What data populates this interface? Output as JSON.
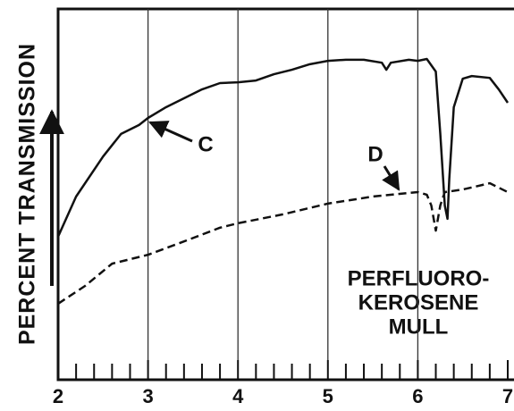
{
  "chart_data": {
    "type": "line",
    "ylabel": "PERCENT TRANSMISSION",
    "xlim": [
      2,
      7
    ],
    "ylim": [
      0,
      100
    ],
    "xticks": [
      2,
      3,
      4,
      5,
      6,
      7
    ],
    "minor_xticks": [
      2.2,
      2.4,
      2.6,
      2.8,
      3.2,
      3.4,
      3.6,
      3.8,
      4.2,
      4.4,
      4.6,
      4.8,
      5.2,
      5.4,
      5.6,
      5.8,
      6.2,
      6.4,
      6.6,
      6.8
    ],
    "grid": true,
    "series": [
      {
        "name": "C",
        "color": "#111111",
        "dash": false,
        "x": [
          2,
          2.2,
          2.5,
          2.7,
          2.9,
          3.0,
          3.2,
          3.4,
          3.6,
          3.8,
          4.0,
          4.2,
          4.4,
          4.6,
          4.8,
          5.0,
          5.2,
          5.4,
          5.6,
          5.65,
          5.7,
          5.9,
          6.0,
          6.1,
          6.2,
          6.25,
          6.3,
          6.33,
          6.35,
          6.4,
          6.5,
          6.6,
          6.8,
          6.9,
          7.0
        ],
        "values": [
          38.6,
          49.4,
          60.2,
          66.3,
          68.7,
          70.6,
          73.5,
          75.9,
          78.3,
          80.0,
          80.2,
          80.7,
          82.4,
          83.6,
          85.1,
          86.0,
          86.3,
          86.3,
          85.5,
          83.6,
          85.5,
          86.3,
          86.0,
          86.5,
          83.1,
          66.3,
          47.0,
          43.4,
          54.2,
          73.5,
          81.2,
          81.9,
          81.4,
          78.3,
          74.7
        ]
      },
      {
        "name": "D",
        "color": "#111111",
        "dash": true,
        "x": [
          2,
          2.3,
          2.6,
          3.0,
          3.4,
          3.8,
          4.0,
          4.5,
          5.0,
          5.5,
          6.0,
          6.1,
          6.15,
          6.2,
          6.25,
          6.3,
          6.5,
          6.8,
          7.0
        ],
        "values": [
          20.5,
          25.3,
          31.3,
          33.7,
          37.3,
          41.0,
          42.2,
          44.6,
          47.5,
          49.4,
          50.6,
          49.9,
          47.0,
          40.2,
          47.0,
          50.6,
          51.3,
          53.0,
          50.6
        ]
      }
    ],
    "annotations": [
      "PERFLUORO-",
      "KEROSENE",
      "MULL"
    ]
  }
}
